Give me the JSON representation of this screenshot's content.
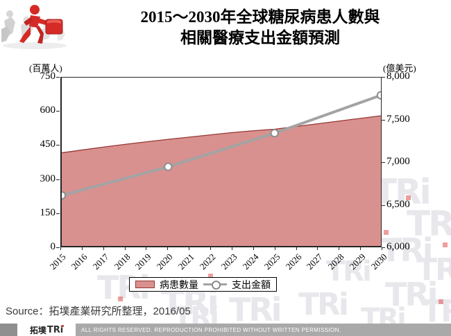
{
  "header": {
    "title_line1": "2015～2030年全球糖尿病患人數與",
    "title_line2": "相關醫療支出金額預測",
    "logo_icon": "running-figure-with-briefcase-logo"
  },
  "chart_data": {
    "type": "combo: area + line",
    "title": "2015～2030年全球糖尿病患人數與相關醫療支出金額預測",
    "categories": [
      2015,
      2016,
      2017,
      2018,
      2019,
      2020,
      2021,
      2022,
      2023,
      2024,
      2025,
      2026,
      2027,
      2028,
      2029,
      2030
    ],
    "left_axis": {
      "unit_label": "(百萬人)",
      "min": 0,
      "max": 750,
      "step": 150,
      "tick_labels": [
        "750",
        "600",
        "450",
        "300",
        "150",
        "0"
      ]
    },
    "right_axis": {
      "unit_label": "(億美元)",
      "min": 6000,
      "max": 8000,
      "step": 500,
      "tick_labels": [
        "8,000",
        "7,500",
        "7,000",
        "6,500",
        "6,000"
      ]
    },
    "series": [
      {
        "name": "病患數量",
        "type": "area",
        "axis": "left",
        "fill_color": "#d9918f",
        "border_color": "#953735",
        "values": [
          415,
          428,
          441,
          453,
          464,
          475,
          485,
          495,
          505,
          513,
          520,
          532,
          544,
          556,
          568,
          580
        ]
      },
      {
        "name": "支出金額",
        "type": "line",
        "axis": "right",
        "line_color": "#a3a3a3",
        "marker": "circle-white-gray-border",
        "x": [
          2015,
          2020,
          2025,
          2030
        ],
        "values": [
          6600,
          6940,
          7340,
          7790
        ]
      }
    ],
    "grid": "off",
    "legend_position": "bottom-center"
  },
  "legend": {
    "items": [
      {
        "label": "病患數量",
        "swatch": "pink-area-swatch"
      },
      {
        "label": "支出金額",
        "swatch": "gray-line-marker-swatch"
      }
    ]
  },
  "source": {
    "text": "Source：拓墣產業研究所整理，2016/05"
  },
  "footer": {
    "logo_zh": "拓墣",
    "logo_en": "TRi",
    "logo_icon": "tri-logo",
    "rights_text": "ALL RIGHTS RESERVED. REPRODUCTION PROHIBITED WITHOUT WRITTEN PERMISSION."
  },
  "watermark": {
    "text": "TRi"
  },
  "colors": {
    "area_fill": "#d9918f",
    "area_border": "#953735",
    "line_gray": "#a3a3a3",
    "marker_border": "#8c8c8c",
    "logo_red": "#cc2a27",
    "footer_gray": "#a9a9a9",
    "watermark_gray": "#e7e7ec"
  }
}
